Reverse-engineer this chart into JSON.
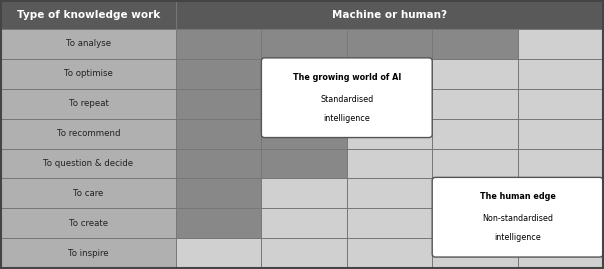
{
  "header_row": [
    "Type of knowledge work",
    "Machine or human?"
  ],
  "row_labels": [
    "To analyse",
    "To optimise",
    "To repeat",
    "To recommend",
    "To question & decide",
    "To care",
    "To create",
    "To inspire"
  ],
  "header_bg": "#595959",
  "header_text_color": "#ffffff",
  "label_col_bg": "#b0b0b0",
  "label_text_color": "#222222",
  "dark_color": "#888888",
  "mid_color": "#a0a0a0",
  "light_color": "#d0d0d0",
  "grid_colors": [
    [
      "#888888",
      "#888888",
      "#888888",
      "#888888",
      "#d0d0d0"
    ],
    [
      "#888888",
      "#888888",
      "#888888",
      "#d0d0d0",
      "#d0d0d0"
    ],
    [
      "#888888",
      "#888888",
      "#888888",
      "#d0d0d0",
      "#d0d0d0"
    ],
    [
      "#888888",
      "#888888",
      "#d0d0d0",
      "#d0d0d0",
      "#d0d0d0"
    ],
    [
      "#888888",
      "#888888",
      "#d0d0d0",
      "#d0d0d0",
      "#d0d0d0"
    ],
    [
      "#888888",
      "#d0d0d0",
      "#d0d0d0",
      "#d0d0d0",
      "#d0d0d0"
    ],
    [
      "#888888",
      "#d0d0d0",
      "#d0d0d0",
      "#d0d0d0",
      "#d0d0d0"
    ],
    [
      "#d0d0d0",
      "#d0d0d0",
      "#d0d0d0",
      "#d0d0d0",
      "#d0d0d0"
    ]
  ],
  "box1_line1": "The growing world of AI",
  "box1_line2": "Standardised",
  "box1_line3": "intelligence",
  "box2_line1": "The human edge",
  "box2_line2": "Non-standardised",
  "box2_line3": "intelligence",
  "border_color": "#444444",
  "cell_border_color": "#777777",
  "fig_w": 6.04,
  "fig_h": 2.69,
  "dpi": 100
}
